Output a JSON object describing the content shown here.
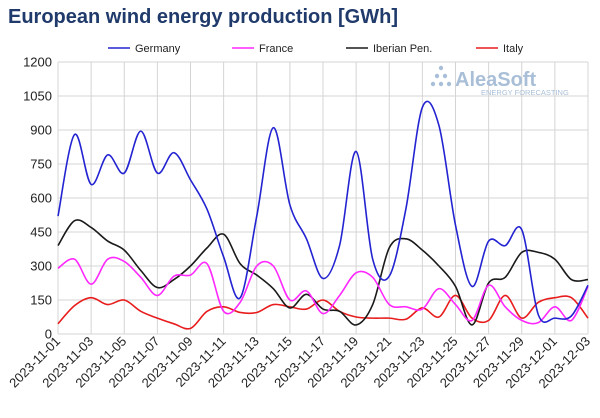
{
  "chart_data": {
    "type": "line",
    "title": "European wind energy production [GWh]",
    "xlabel": "",
    "ylabel": "",
    "ylim": [
      0,
      1200
    ],
    "yticks": [
      0,
      150,
      300,
      450,
      600,
      750,
      900,
      1050,
      1200
    ],
    "grid": true,
    "legend_position": "top",
    "x_start": "2023-11-01",
    "x_end": "2023-12-03",
    "xtick_labels": [
      "2023-11-01",
      "2023-11-03",
      "2023-11-05",
      "2023-11-07",
      "2023-11-09",
      "2023-11-11",
      "2023-11-13",
      "2023-11-15",
      "2023-11-17",
      "2023-11-19",
      "2023-11-21",
      "2023-11-23",
      "2023-11-25",
      "2023-11-27",
      "2023-11-29",
      "2023-12-01",
      "2023-12-03"
    ],
    "x": [
      "2023-11-01",
      "2023-11-02",
      "2023-11-03",
      "2023-11-04",
      "2023-11-05",
      "2023-11-06",
      "2023-11-07",
      "2023-11-08",
      "2023-11-09",
      "2023-11-10",
      "2023-11-11",
      "2023-11-12",
      "2023-11-13",
      "2023-11-14",
      "2023-11-15",
      "2023-11-16",
      "2023-11-17",
      "2023-11-18",
      "2023-11-19",
      "2023-11-20",
      "2023-11-21",
      "2023-11-22",
      "2023-11-23",
      "2023-11-24",
      "2023-11-25",
      "2023-11-26",
      "2023-11-27",
      "2023-11-28",
      "2023-11-29",
      "2023-11-30",
      "2023-12-01",
      "2023-12-02",
      "2023-12-03"
    ],
    "series": [
      {
        "name": "Germany",
        "color": "#2323d2",
        "values": [
          520,
          880,
          660,
          790,
          710,
          895,
          710,
          800,
          680,
          550,
          340,
          160,
          520,
          910,
          570,
          420,
          245,
          390,
          805,
          330,
          255,
          550,
          1000,
          920,
          480,
          210,
          410,
          390,
          460,
          85,
          70,
          80,
          215
        ]
      },
      {
        "name": "France",
        "color": "#ff28ff",
        "values": [
          290,
          330,
          220,
          330,
          320,
          250,
          170,
          255,
          260,
          310,
          100,
          140,
          300,
          300,
          150,
          190,
          90,
          170,
          270,
          250,
          130,
          120,
          110,
          200,
          130,
          60,
          215,
          120,
          60,
          50,
          120,
          60,
          210
        ]
      },
      {
        "name": "Iberian Pen.",
        "color": "#1a1a1a",
        "values": [
          390,
          500,
          470,
          410,
          370,
          280,
          205,
          240,
          300,
          380,
          440,
          310,
          260,
          200,
          115,
          175,
          110,
          100,
          40,
          130,
          380,
          420,
          370,
          300,
          210,
          40,
          225,
          250,
          360,
          360,
          330,
          240,
          240
        ]
      },
      {
        "name": "Italy",
        "color": "#e81c1c",
        "values": [
          45,
          125,
          160,
          130,
          150,
          100,
          70,
          45,
          25,
          100,
          120,
          95,
          95,
          130,
          120,
          110,
          150,
          100,
          75,
          70,
          70,
          65,
          115,
          75,
          170,
          70,
          60,
          170,
          70,
          140,
          160,
          160,
          70
        ]
      }
    ]
  },
  "logo": {
    "name": "AleaSoft",
    "subtitle": "ENERGY FORECASTING"
  }
}
